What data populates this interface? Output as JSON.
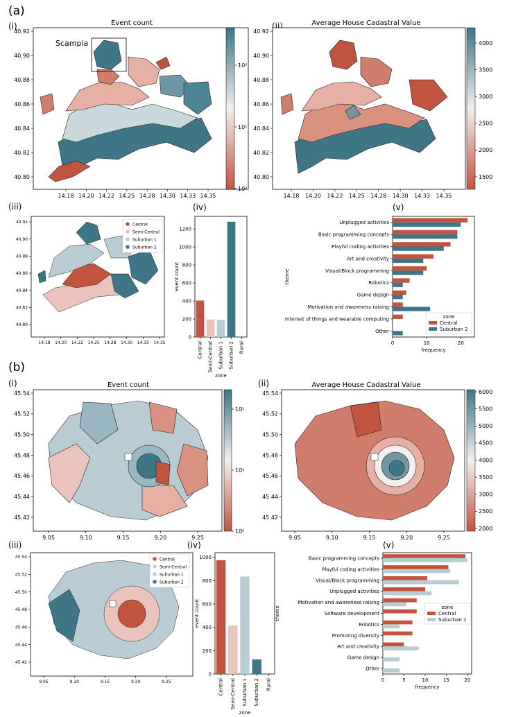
{
  "figure": {
    "panels": [
      {
        "tag": "(a)",
        "city_annotation": "Scampia",
        "map_event": {
          "roman": "(i)",
          "title": "Event count",
          "x_ticks": [
            "14.18",
            "14.20",
            "14.22",
            "14.25",
            "14.28",
            "14.30",
            "14.33",
            "14.35"
          ],
          "y_ticks": [
            "40.92",
            "40.90",
            "40.88",
            "40.86",
            "40.84",
            "40.82",
            "40.80"
          ],
          "colorbar_ticks": [
            "10²",
            "10¹",
            "10⁰"
          ]
        },
        "map_value": {
          "roman": "(ii)",
          "title": "Average House Cadastral Value",
          "x_ticks": [
            "14.18",
            "14.20",
            "14.22",
            "14.25",
            "14.28",
            "14.30",
            "14.33",
            "14.35"
          ],
          "y_ticks": [
            "40.92",
            "40.90",
            "40.88",
            "40.86",
            "40.84",
            "40.82",
            "40.80"
          ],
          "colorbar_ticks": [
            "4000",
            "3500",
            "3000",
            "2500",
            "2000",
            "1500"
          ]
        },
        "map_zone": {
          "roman": "(iii)",
          "x_ticks": [
            "14.18",
            "14.20",
            "14.22",
            "14.25",
            "14.28",
            "14.30",
            "14.33",
            "14.35"
          ],
          "y_ticks": [
            "40.92",
            "40.90",
            "40.88",
            "40.86",
            "40.84",
            "40.82",
            "40.80"
          ],
          "legend": [
            "Central",
            "Semi-Central",
            "Suburban 1",
            "Suburban 2"
          ]
        },
        "bar_roman": "(iv)",
        "theme_roman": "(v)"
      },
      {
        "tag": "(b)",
        "map_event": {
          "roman": "(i)",
          "title": "Event count",
          "x_ticks": [
            "9.05",
            "9.10",
            "9.15",
            "9.20",
            "9.25"
          ],
          "y_ticks": [
            "45.54",
            "45.52",
            "45.50",
            "45.48",
            "45.46",
            "45.44",
            "45.42"
          ],
          "colorbar_ticks": [
            "10²",
            "10¹",
            "10⁰"
          ]
        },
        "map_value": {
          "roman": "(ii)",
          "title": "Average House Cadastral Value",
          "x_ticks": [
            "9.05",
            "9.10",
            "9.15",
            "9.20",
            "9.25"
          ],
          "y_ticks": [
            "45.54",
            "45.52",
            "45.50",
            "45.48",
            "45.46",
            "45.44",
            "45.42"
          ],
          "colorbar_ticks": [
            "6000",
            "5500",
            "5000",
            "4500",
            "4000",
            "3500",
            "3000",
            "2500",
            "2000"
          ]
        },
        "map_zone": {
          "roman": "(iii)",
          "x_ticks": [
            "9.05",
            "9.10",
            "9.15",
            "9.20",
            "9.25"
          ],
          "y_ticks": [
            "45.54",
            "45.52",
            "45.50",
            "45.48",
            "45.46",
            "45.44",
            "45.42"
          ],
          "legend": [
            "Central",
            "Semi-Central",
            "Suburban 1",
            "Suburban 2"
          ]
        },
        "bar_roman": "(iv)",
        "theme_roman": "(v)"
      }
    ]
  },
  "colors": {
    "Central": "#c0543e",
    "Semi-Central": "#e9c3bc",
    "Suburban 1": "#b9ccd3",
    "Suburban 2": "#3e7686",
    "ramp_low": "#c0543e",
    "ramp_mid": "#f2efee",
    "ramp_high": "#3e7686"
  },
  "chart_data": [
    {
      "id": "a-iv",
      "type": "bar",
      "categories": [
        "Central",
        "Semi-Central",
        "Suburban 1",
        "Suburban 2",
        "Rural"
      ],
      "values": [
        405,
        195,
        190,
        1280,
        0
      ],
      "yticks": [
        0,
        200,
        400,
        600,
        800,
        1000,
        1200
      ],
      "ylim": [
        0,
        1340
      ],
      "xlabel": "zone",
      "ylabel": "event count"
    },
    {
      "id": "a-v",
      "type": "bar",
      "orientation": "horizontal",
      "categories": [
        "Unplugged activities",
        "Basic programming concepts",
        "Playful coding activities",
        "Art and creativity",
        "Visual/Block programming",
        "Robotics",
        "Game design",
        "Motivation and awareness raising",
        "Internet of things and wearable computing",
        "Other"
      ],
      "series": [
        {
          "name": "Central",
          "values": [
            22,
            19,
            17,
            12,
            10,
            5,
            4,
            3,
            3,
            0
          ]
        },
        {
          "name": "Suburban 2",
          "values": [
            20,
            19,
            15,
            9,
            9,
            3,
            3,
            11,
            0,
            3
          ]
        }
      ],
      "xticks": [
        0,
        10,
        20
      ],
      "xlim": [
        0,
        24
      ],
      "xlabel": "frequency",
      "ylabel": "theme",
      "legend_title": "zone",
      "legend_position": "lower-right"
    },
    {
      "id": "b-iv",
      "type": "bar",
      "categories": [
        "Central",
        "Semi-Central",
        "Suburban 1",
        "Suburban 2",
        "Rural"
      ],
      "values": [
        975,
        415,
        835,
        125,
        0
      ],
      "yticks": [
        0,
        200,
        400,
        600,
        800,
        1000
      ],
      "ylim": [
        0,
        1040
      ],
      "xlabel": "zone",
      "ylabel": "event count"
    },
    {
      "id": "b-v",
      "type": "bar",
      "orientation": "horizontal",
      "categories": [
        "Basic programming concepts",
        "Playful coding activities",
        "Visual/Block programming",
        "Unplugged activities",
        "Motivation and awareness raising",
        "Software development",
        "Robotics",
        "Promoting diversity",
        "Art and creativity",
        "Game design",
        "Other"
      ],
      "series": [
        {
          "name": "Central",
          "values": [
            19.5,
            15.5,
            10.5,
            10,
            8,
            8,
            7,
            7,
            5,
            0,
            0
          ]
        },
        {
          "name": "Suburban 1",
          "values": [
            20,
            16,
            18,
            11.5,
            5.5,
            0,
            4,
            0,
            8.5,
            4,
            4
          ]
        }
      ],
      "xticks": [
        0,
        5,
        10,
        15,
        20
      ],
      "xlim": [
        0,
        21
      ],
      "xlabel": "frequency",
      "ylabel": "theme",
      "legend_title": "zone",
      "legend_position": "middle-right"
    }
  ]
}
